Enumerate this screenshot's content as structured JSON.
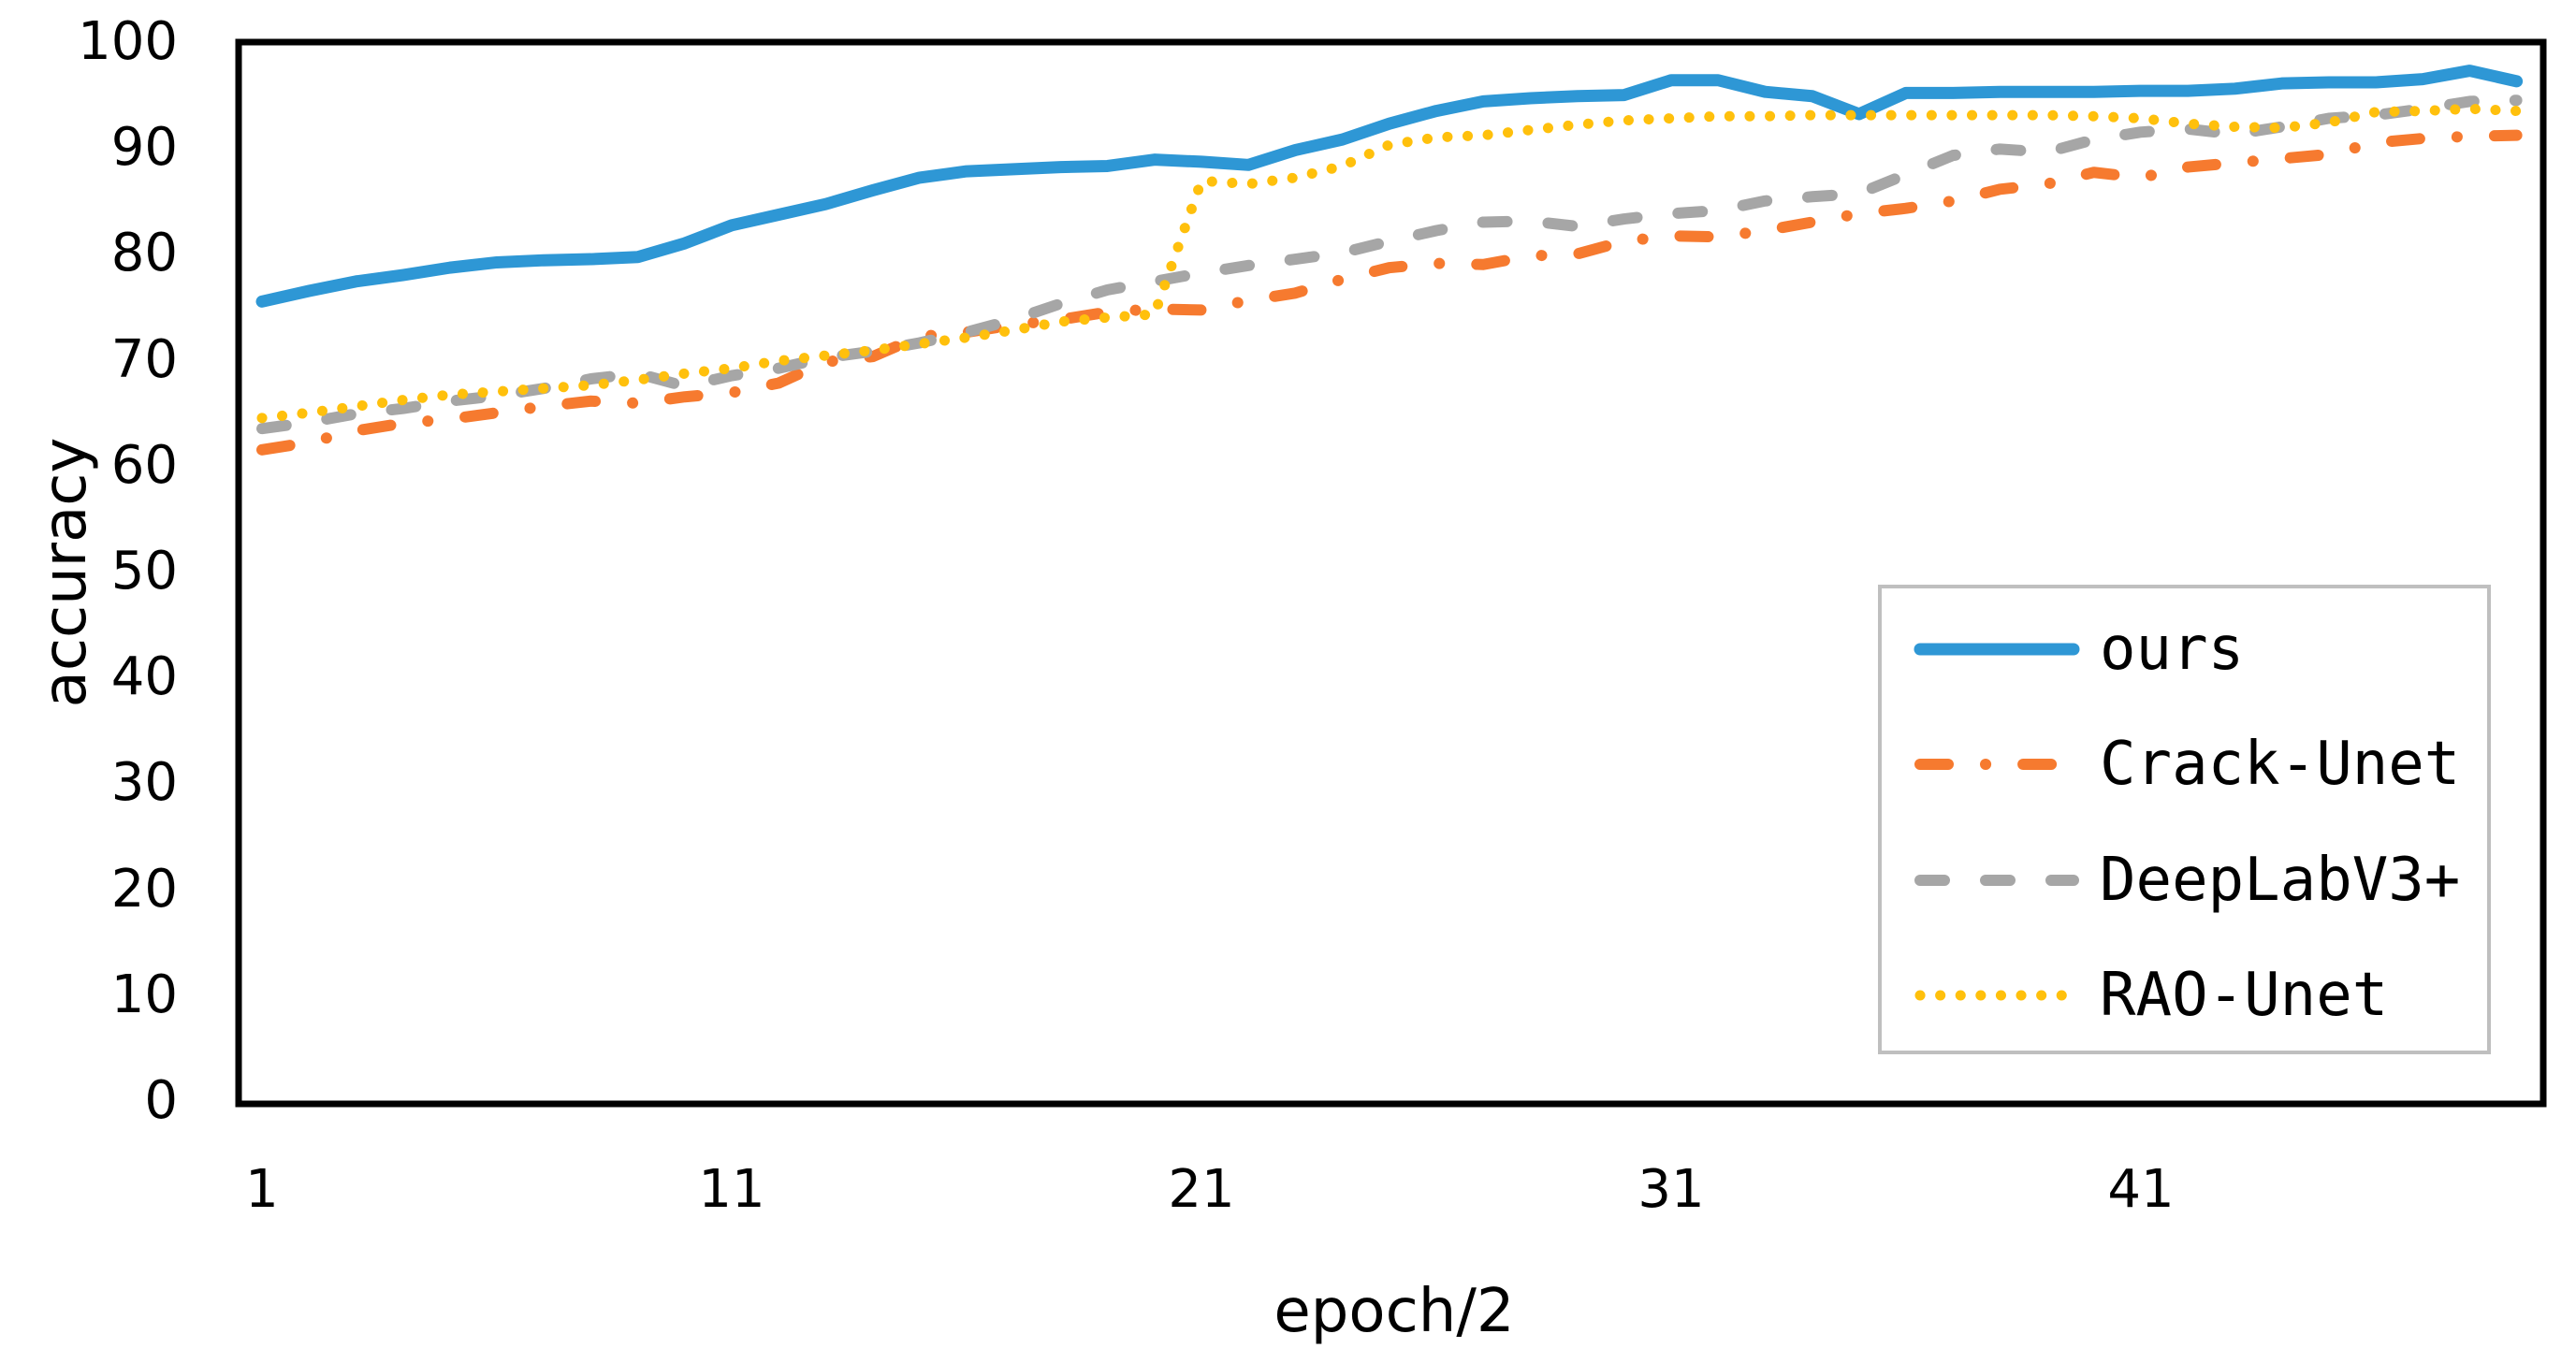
{
  "figure": {
    "background_color": "#ffffff",
    "frame_color": "#000000",
    "legend_border_color": "#bfbfbf",
    "text_color": "#000000"
  },
  "chart_data": {
    "type": "line",
    "title": "",
    "xlabel": "epoch/2",
    "ylabel": "accuracy",
    "x_ticks": [
      1,
      11,
      21,
      31,
      41
    ],
    "y_ticks": [
      0,
      10,
      20,
      30,
      40,
      50,
      60,
      70,
      80,
      90,
      100
    ],
    "xlim": [
      1,
      49
    ],
    "ylim": [
      0,
      100
    ],
    "grid": false,
    "legend_position": "middle-right",
    "x": [
      1,
      2,
      3,
      4,
      5,
      6,
      7,
      8,
      9,
      10,
      11,
      12,
      13,
      14,
      15,
      16,
      17,
      18,
      19,
      20,
      21,
      22,
      23,
      24,
      25,
      26,
      27,
      28,
      29,
      30,
      31,
      32,
      33,
      34,
      35,
      36,
      37,
      38,
      39,
      40,
      41,
      42,
      43,
      44,
      45,
      46,
      47,
      48,
      49
    ],
    "series": [
      {
        "name": "ours",
        "color": "#2e97d5",
        "line_style": "solid",
        "values": [
          75.5,
          76.5,
          77.4,
          78.0,
          78.7,
          79.2,
          79.4,
          79.5,
          79.7,
          81.0,
          82.7,
          83.7,
          84.7,
          86.0,
          87.2,
          87.8,
          88.0,
          88.2,
          88.3,
          88.9,
          88.7,
          88.4,
          89.8,
          90.8,
          92.3,
          93.5,
          94.4,
          94.7,
          94.9,
          95.0,
          96.4,
          96.4,
          95.3,
          94.9,
          93.2,
          95.2,
          95.2,
          95.3,
          95.3,
          95.3,
          95.4,
          95.4,
          95.6,
          96.1,
          96.2,
          96.2,
          96.5,
          97.3,
          96.3
        ]
      },
      {
        "name": "Crack-Unet",
        "color": "#f67a2f",
        "line_style": "dash-dot",
        "values": [
          61.5,
          62.2,
          63.3,
          64.0,
          64.4,
          65.0,
          65.6,
          66.1,
          65.9,
          66.5,
          66.9,
          67.8,
          69.8,
          70.3,
          72.2,
          72.6,
          73.3,
          73.8,
          74.5,
          74.8,
          74.7,
          75.6,
          76.3,
          77.6,
          78.7,
          79.1,
          79.0,
          79.8,
          80.0,
          81.2,
          81.7,
          81.6,
          82.2,
          83.0,
          83.8,
          84.3,
          85.0,
          86.1,
          86.6,
          87.7,
          87.2,
          88.2,
          88.6,
          89.0,
          89.4,
          90.5,
          90.9,
          91.1,
          91.2
        ]
      },
      {
        "name": "DeepLabV3+",
        "color": "#a6a6a6",
        "line_style": "dashed",
        "values": [
          63.5,
          64.1,
          64.9,
          65.4,
          66.1,
          66.6,
          67.3,
          68.2,
          68.7,
          67.5,
          68.5,
          69.2,
          70.2,
          70.8,
          71.6,
          72.6,
          73.8,
          75.3,
          76.6,
          77.4,
          78.2,
          78.9,
          79.5,
          80.1,
          81.2,
          82.2,
          83.0,
          83.1,
          82.6,
          83.3,
          83.8,
          84.1,
          85.0,
          85.4,
          85.7,
          87.5,
          89.3,
          89.9,
          89.6,
          90.8,
          91.5,
          91.8,
          91.3,
          92.0,
          92.8,
          93.1,
          93.7,
          94.4,
          94.5
        ]
      },
      {
        "name": "RAO-Unet",
        "color": "#ffc00c",
        "line_style": "dotted",
        "values": [
          64.5,
          65.0,
          65.6,
          66.2,
          66.7,
          67.0,
          67.3,
          67.6,
          68.1,
          68.7,
          69.2,
          69.9,
          70.4,
          70.9,
          71.5,
          72.1,
          72.8,
          73.6,
          74.0,
          74.3,
          86.9,
          86.6,
          87.2,
          88.3,
          90.3,
          91.0,
          91.2,
          91.7,
          92.2,
          92.6,
          92.8,
          93.0,
          93.0,
          93.1,
          93.1,
          93.1,
          93.1,
          93.1,
          93.1,
          93.0,
          92.8,
          92.3,
          92.0,
          91.9,
          92.4,
          93.4,
          93.5,
          93.7,
          93.5
        ]
      }
    ]
  }
}
